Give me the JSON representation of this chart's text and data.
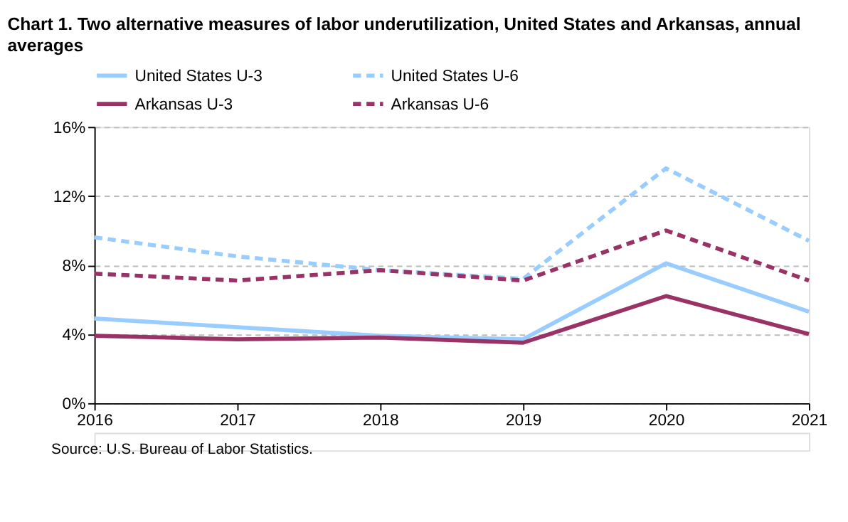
{
  "chart_data": {
    "type": "line",
    "title": "Chart 1. Two alternative measures of labor underutilization, United States and Arkansas, annual averages",
    "categories": [
      "2016",
      "2017",
      "2018",
      "2019",
      "2020",
      "2021"
    ],
    "series": [
      {
        "name": "United States U-3",
        "color": "#99ccff",
        "line_style": "solid",
        "values": [
          4.9,
          4.4,
          3.9,
          3.7,
          8.1,
          5.3
        ]
      },
      {
        "name": "United States U-6",
        "color": "#99ccff",
        "line_style": "dashed",
        "values": [
          9.6,
          8.5,
          7.7,
          7.2,
          13.6,
          9.4
        ]
      },
      {
        "name": "Arkansas U-3",
        "color": "#993366",
        "line_style": "solid",
        "values": [
          3.9,
          3.7,
          3.8,
          3.5,
          6.2,
          4.0
        ]
      },
      {
        "name": "Arkansas U-6",
        "color": "#993366",
        "line_style": "dashed",
        "values": [
          7.5,
          7.1,
          7.7,
          7.1,
          10.0,
          7.1
        ]
      }
    ],
    "ylim": [
      0,
      16
    ],
    "yticks": [
      {
        "value": 0,
        "label": "0%"
      },
      {
        "value": 4,
        "label": "4%"
      },
      {
        "value": 8,
        "label": "8%"
      },
      {
        "value": 12,
        "label": "12%"
      },
      {
        "value": 16,
        "label": "16%"
      }
    ],
    "grid": "y",
    "legend": "top",
    "marker": "none",
    "annotations": [
      "Source: U.S. Bureau of Labor Statistics."
    ]
  }
}
